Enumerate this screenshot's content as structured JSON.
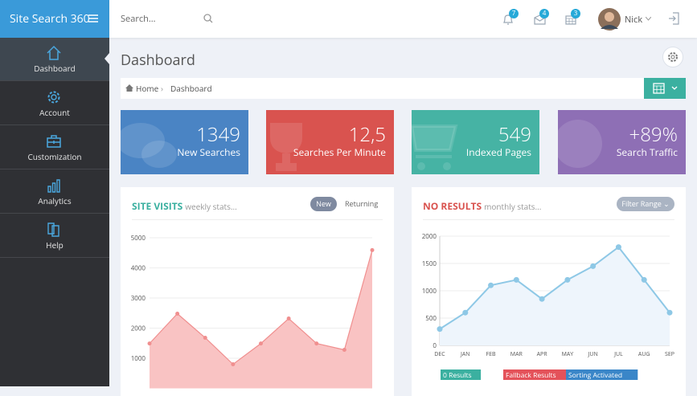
{
  "brand": "Site Search 360",
  "search_placeholder": "Search...",
  "badges": [
    7,
    4,
    3
  ],
  "user": "Nick",
  "sidebar": [
    "Dashboard",
    "Account",
    "Customization",
    "Analytics",
    "Help"
  ],
  "page_title": "Dashboard",
  "breadcrumb": [
    "Home",
    "Dashboard"
  ],
  "stats": [
    {
      "value": 1349,
      "label": "New Searches",
      "color": "#4a84c4"
    },
    {
      "value": "12,5",
      "label": "Searches Per Minute",
      "color": "#d9534f"
    },
    {
      "value": 549,
      "label": "Indexed Pages",
      "color": "#46b3a4"
    },
    {
      "value": "+89%",
      "label": "Search Traffic",
      "color": "#8e6fb5"
    }
  ],
  "chart_data": [
    {
      "type": "area",
      "title": "SITE VISITS",
      "subtitle": "weekly stats...",
      "title_color": "#3bb0a0",
      "buttons": [
        "New",
        "Returning"
      ],
      "categories": [
        null,
        null,
        null,
        null,
        null,
        null,
        null,
        null,
        null
      ],
      "series": [
        {
          "values": [
            1490,
            2480,
            1680,
            800,
            1490,
            2320,
            1490,
            1280,
            4590
          ],
          "color": "#f08f8f",
          "fill": "#f9c3c3"
        }
      ],
      "ylim": [
        0,
        5000
      ],
      "yticks": [
        1000,
        2000,
        3000,
        4000,
        5000
      ],
      "grid": true
    },
    {
      "type": "line",
      "title": "NO RESULTS",
      "subtitle": "monthly stats...",
      "title_color": "#d9534f",
      "buttons": [
        "Filter Range"
      ],
      "categories": [
        "DEC",
        "JAN",
        "FEB",
        "MAR",
        "APR",
        "MAY",
        "JUN",
        "JUL",
        "AUG",
        "SEP"
      ],
      "series": [
        {
          "values": [
            300,
            600,
            1100,
            1200,
            850,
            1200,
            1450,
            1800,
            1200,
            600
          ],
          "color": "#8ec8e6",
          "fill": "#eef5fc"
        }
      ],
      "ylim": [
        0,
        2000
      ],
      "yticks": [
        0,
        500,
        1000,
        1500,
        2000
      ],
      "grid": true,
      "legend": [
        {
          "label": "0 Results",
          "color": "#3bb0a0"
        },
        {
          "label": "Fallback Results",
          "color": "#e4525a"
        },
        {
          "label": "Sorting Activated",
          "color": "#3a86c8"
        }
      ]
    }
  ]
}
